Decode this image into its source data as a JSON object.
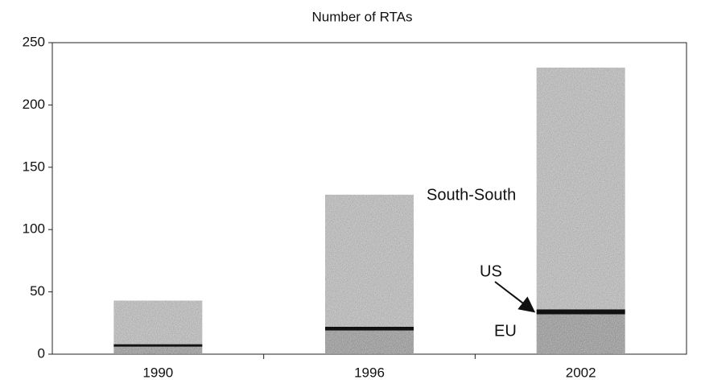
{
  "chart_data": {
    "type": "stacked_bar",
    "title": "Number of RTAs",
    "categories": [
      "1990",
      "1996",
      "2002"
    ],
    "series": [
      {
        "name": "EU",
        "color": "#a6a6a6",
        "values": [
          6,
          19,
          32
        ]
      },
      {
        "name": "US",
        "color": "#111111",
        "values": [
          2,
          3,
          4
        ]
      },
      {
        "name": "South-South",
        "color": "#c4c4c4",
        "values": [
          35,
          106,
          194
        ]
      }
    ],
    "ylim": [
      0,
      250
    ],
    "yticks": [
      0,
      50,
      100,
      150,
      200,
      250
    ]
  }
}
